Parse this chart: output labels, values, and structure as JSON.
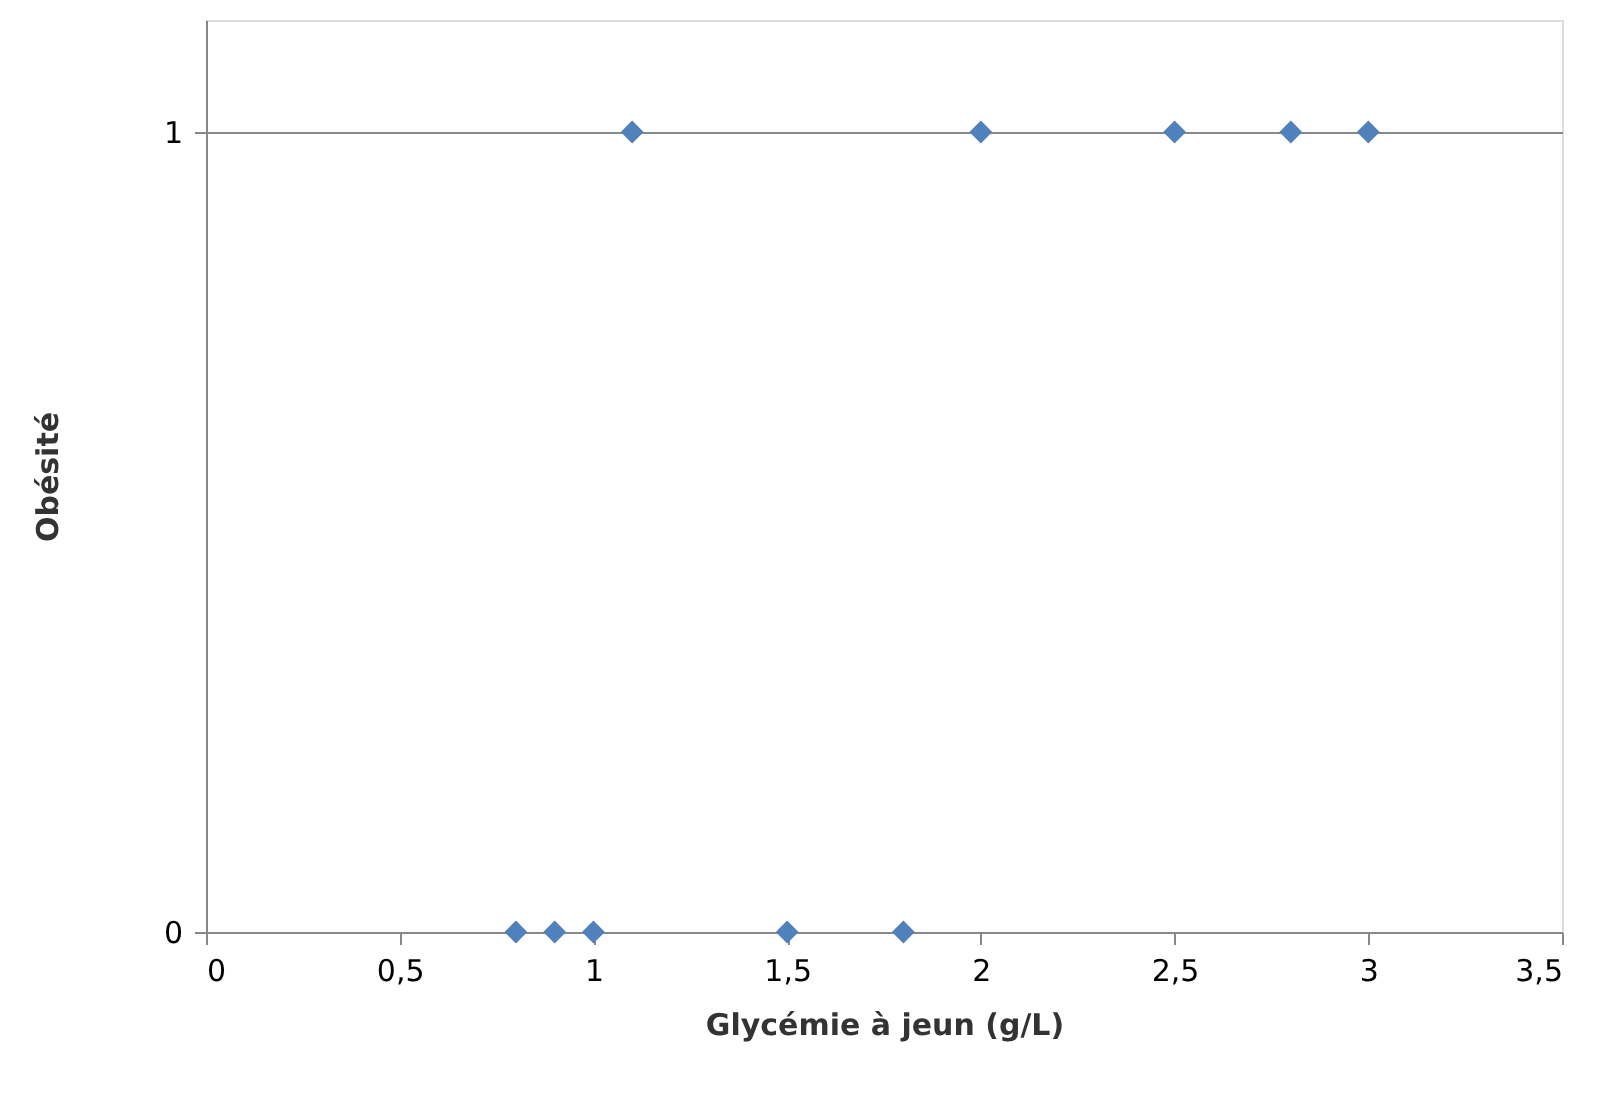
{
  "chart_data": {
    "type": "scatter",
    "xlabel": "Glycémie à jeun (g/L)",
    "ylabel": "Obésité",
    "x": [
      0.8,
      0.9,
      1.0,
      1.1,
      1.5,
      1.8,
      2.0,
      2.5,
      2.8,
      3.0
    ],
    "series": [
      {
        "color": "#4f81bd",
        "values": [
          0,
          0,
          0,
          1,
          0,
          0,
          1,
          1,
          1,
          1
        ]
      }
    ],
    "xlim": [
      0,
      3.5
    ],
    "xticks": [
      0,
      {
        "value": 0.5,
        "label": "0,5"
      },
      1,
      {
        "value": 1.5,
        "label": "1,5"
      },
      2,
      {
        "value": 2.5,
        "label": "2,5"
      },
      3,
      {
        "value": 3.5,
        "label": "3,5"
      }
    ],
    "ylim": [
      0,
      1.14
    ],
    "yticks": [
      0,
      1
    ],
    "grid": "y",
    "marker": "diamond"
  }
}
